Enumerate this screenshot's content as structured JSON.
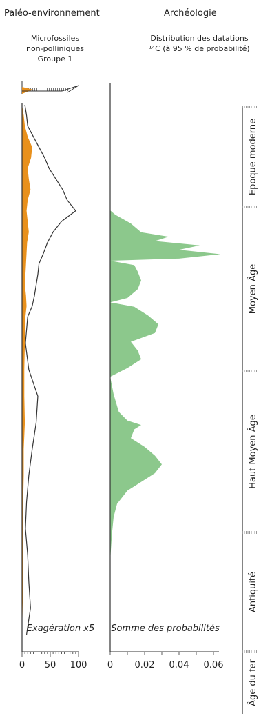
{
  "headers": {
    "left": "Paléo-environnement",
    "right": "Archéologie"
  },
  "subtitles": {
    "left": [
      "Microfossiles",
      "non-polliniques",
      "Groupe 1"
    ],
    "right": [
      "Distribution des datations",
      "¹⁴C (à 95 % de probabilité)"
    ]
  },
  "chart_data": [
    {
      "type": "area",
      "title": "Microfossiles non-polliniques Groupe 1",
      "annotation": "Exagération x5",
      "xlim": [
        0,
        100
      ],
      "ticks": [
        0,
        50,
        100
      ],
      "tick_labels": [
        "0",
        "50",
        "100"
      ],
      "depth_range": [
        0,
        100
      ],
      "y": [
        0,
        2,
        4,
        6,
        8,
        10,
        12,
        14,
        16,
        18,
        20,
        22,
        24,
        26,
        28,
        30,
        32,
        34,
        36,
        38,
        40,
        45,
        50,
        55,
        60,
        65,
        70,
        75,
        80,
        85,
        90,
        95,
        100
      ],
      "series": [
        {
          "kind": "area",
          "color": "#e8901c",
          "values": [
            0,
            3,
            5,
            10,
            18,
            16,
            10,
            12,
            15,
            10,
            8,
            10,
            12,
            9,
            8,
            7,
            6,
            5,
            7,
            8,
            6,
            5,
            4,
            4,
            5,
            3,
            3,
            2,
            2,
            2,
            2,
            1,
            0
          ]
        },
        {
          "kind": "line",
          "color": "#333333",
          "values": [
            5,
            8,
            10,
            20,
            30,
            40,
            48,
            60,
            72,
            80,
            95,
            70,
            55,
            45,
            38,
            30,
            28,
            25,
            22,
            18,
            10,
            6,
            12,
            28,
            25,
            18,
            12,
            8,
            6,
            10,
            12,
            15,
            8
          ]
        }
      ]
    },
    {
      "type": "area",
      "title": "Distribution des datations ¹⁴C (à 95 % de probabilité)",
      "annotation": "Somme des probabilités",
      "xlim": [
        0,
        0.06
      ],
      "ticks": [
        0,
        0.02,
        0.04,
        0.06
      ],
      "tick_labels": [
        "0",
        "0.02",
        "0.04",
        "0.06"
      ],
      "series": [
        {
          "kind": "area",
          "color": "#8cc88c",
          "profile": [
            [
              0.0,
              0.0
            ],
            [
              0.01,
              0.003
            ],
            [
              0.03,
              0.012
            ],
            [
              0.05,
              0.018
            ],
            [
              0.06,
              0.034
            ],
            [
              0.07,
              0.026
            ],
            [
              0.08,
              0.052
            ],
            [
              0.09,
              0.04
            ],
            [
              0.1,
              0.064
            ],
            [
              0.11,
              0.04
            ],
            [
              0.115,
              0.0
            ],
            [
              0.125,
              0.014
            ],
            [
              0.14,
              0.016
            ],
            [
              0.16,
              0.018
            ],
            [
              0.18,
              0.016
            ],
            [
              0.2,
              0.01
            ],
            [
              0.21,
              0.0
            ],
            [
              0.22,
              0.014
            ],
            [
              0.24,
              0.022
            ],
            [
              0.26,
              0.028
            ],
            [
              0.28,
              0.026
            ],
            [
              0.3,
              0.012
            ],
            [
              0.32,
              0.016
            ],
            [
              0.34,
              0.018
            ],
            [
              0.36,
              0.01
            ],
            [
              0.38,
              0.0
            ],
            [
              0.42,
              0.002
            ],
            [
              0.46,
              0.005
            ],
            [
              0.48,
              0.01
            ],
            [
              0.49,
              0.018
            ],
            [
              0.5,
              0.014
            ],
            [
              0.52,
              0.012
            ],
            [
              0.54,
              0.02
            ],
            [
              0.56,
              0.026
            ],
            [
              0.58,
              0.03
            ],
            [
              0.6,
              0.026
            ],
            [
              0.62,
              0.018
            ],
            [
              0.64,
              0.01
            ],
            [
              0.67,
              0.004
            ],
            [
              0.7,
              0.002
            ],
            [
              0.74,
              0.001
            ],
            [
              0.8,
              0.0
            ]
          ]
        }
      ]
    }
  ],
  "periods": [
    "Epoque moderne",
    "Moyen Âge",
    "Haut Moyen Âge",
    "Antiquité",
    "Âge du fer"
  ]
}
